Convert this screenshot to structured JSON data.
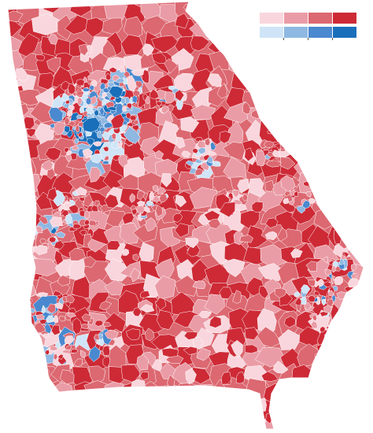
{
  "map": {
    "region": "Georgia",
    "colors": {
      "rep_1": "#f9d6dd",
      "rep_2": "#ea9ca6",
      "rep_3": "#dc6871",
      "rep_4": "#cd2a36",
      "dem_1": "#cfe5f7",
      "dem_2": "#8fb8e2",
      "dem_3": "#4a89cf",
      "dem_4": "#1a6fba",
      "border": "#ffffff"
    },
    "background": "#ffffff"
  },
  "legend": {
    "rep_swatches": [
      "rep_1",
      "rep_2",
      "rep_3",
      "rep_4"
    ],
    "dem_swatches": [
      "dem_1",
      "dem_2",
      "dem_3",
      "dem_4"
    ]
  }
}
